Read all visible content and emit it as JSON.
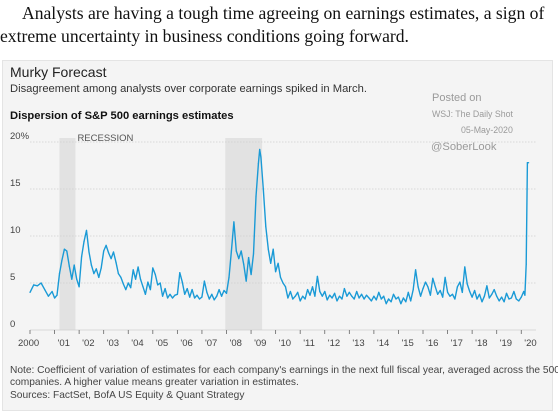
{
  "intro_text": "Analysts are having a tough time agreeing on earnings estimates, a sign of extreme uncertainty in business conditions going forward.",
  "postmark": {
    "line1": "Posted on",
    "line2": "WSJ: The Daily Shot",
    "line3": "05-May-2020",
    "line4": "@SoberLook"
  },
  "note": "Note: Coefficient of variation of estimates for each company's earnings in the next full fiscal year, averaged across the 500 companies. A higher value means greater variation in estimates.",
  "note_line1": "Note: Coefficient of variation of estimates for each company's earnings in the next full fiscal year, averaged across the 500",
  "note_line2": "companies. A higher value means greater variation in estimates.",
  "sources": "Sources: FactSet, BofA US Equity & Quant Strategy",
  "colors": {
    "line": "#1a9ad6",
    "recession": "#e2e2e2",
    "card": "#f4f4f4",
    "grid": "#cfcfcf"
  },
  "chart_data": {
    "type": "line",
    "title": "Murky Forecast",
    "subtitle": "Disagreement among analysts over corporate earnings spiked in March.",
    "panel_title": "Dispersion of S&P 500 earnings estimates",
    "ylim": [
      0,
      20
    ],
    "yticks": [
      0,
      5,
      10,
      15,
      20
    ],
    "ytick_labels": [
      "0",
      "5",
      "10",
      "15",
      "20%"
    ],
    "xlim": [
      2000,
      2020.6
    ],
    "xticks": [
      2000,
      2001,
      2002,
      2003,
      2004,
      2005,
      2006,
      2007,
      2008,
      2009,
      2010,
      2011,
      2012,
      2013,
      2014,
      2015,
      2016,
      2017,
      2018,
      2019,
      2020
    ],
    "xtick_labels": [
      "2000",
      "'01",
      "'02",
      "'03",
      "'04",
      "'05",
      "'06",
      "'07",
      "'08",
      "'09",
      "'10",
      "'11",
      "'12",
      "'13",
      "'14",
      "'15",
      "'16",
      "'17",
      "'18",
      "'19",
      "'20"
    ],
    "grid": true,
    "recessions": [
      {
        "label": "RECESSION",
        "start": 2001.2,
        "end": 2001.85
      },
      {
        "label": "",
        "start": 2007.95,
        "end": 2009.45
      }
    ],
    "series": [
      {
        "values": [
          [
            2000.0,
            4.0
          ],
          [
            2000.15,
            4.8
          ],
          [
            2000.3,
            4.7
          ],
          [
            2000.45,
            5.0
          ],
          [
            2000.6,
            4.3
          ],
          [
            2000.75,
            3.6
          ],
          [
            2000.9,
            4.1
          ],
          [
            2001.0,
            3.4
          ],
          [
            2001.1,
            3.7
          ],
          [
            2001.2,
            6.0
          ],
          [
            2001.3,
            7.4
          ],
          [
            2001.4,
            8.6
          ],
          [
            2001.5,
            8.4
          ],
          [
            2001.6,
            6.8
          ],
          [
            2001.7,
            5.4
          ],
          [
            2001.8,
            6.9
          ],
          [
            2001.9,
            5.4
          ],
          [
            2002.0,
            4.6
          ],
          [
            2002.1,
            7.8
          ],
          [
            2002.2,
            9.4
          ],
          [
            2002.3,
            10.6
          ],
          [
            2002.4,
            8.3
          ],
          [
            2002.5,
            6.9
          ],
          [
            2002.6,
            6.0
          ],
          [
            2002.7,
            6.5
          ],
          [
            2002.8,
            5.6
          ],
          [
            2002.9,
            6.6
          ],
          [
            2003.0,
            8.4
          ],
          [
            2003.1,
            9.0
          ],
          [
            2003.2,
            8.2
          ],
          [
            2003.3,
            7.6
          ],
          [
            2003.4,
            8.3
          ],
          [
            2003.5,
            7.2
          ],
          [
            2003.6,
            6.0
          ],
          [
            2003.7,
            5.6
          ],
          [
            2003.8,
            4.9
          ],
          [
            2003.9,
            4.3
          ],
          [
            2004.0,
            5.0
          ],
          [
            2004.1,
            4.5
          ],
          [
            2004.2,
            6.4
          ],
          [
            2004.3,
            5.4
          ],
          [
            2004.4,
            6.7
          ],
          [
            2004.5,
            5.4
          ],
          [
            2004.6,
            4.6
          ],
          [
            2004.7,
            3.8
          ],
          [
            2004.8,
            5.1
          ],
          [
            2004.9,
            4.3
          ],
          [
            2005.0,
            6.6
          ],
          [
            2005.1,
            5.9
          ],
          [
            2005.2,
            4.8
          ],
          [
            2005.3,
            5.0
          ],
          [
            2005.4,
            3.6
          ],
          [
            2005.5,
            4.4
          ],
          [
            2005.6,
            3.4
          ],
          [
            2005.7,
            3.8
          ],
          [
            2005.8,
            3.4
          ],
          [
            2005.9,
            3.7
          ],
          [
            2006.0,
            3.8
          ],
          [
            2006.1,
            6.1
          ],
          [
            2006.2,
            5.1
          ],
          [
            2006.3,
            3.8
          ],
          [
            2006.4,
            4.4
          ],
          [
            2006.5,
            3.5
          ],
          [
            2006.6,
            4.3
          ],
          [
            2006.7,
            3.4
          ],
          [
            2006.8,
            3.7
          ],
          [
            2006.9,
            3.3
          ],
          [
            2007.0,
            3.5
          ],
          [
            2007.1,
            5.2
          ],
          [
            2007.2,
            4.0
          ],
          [
            2007.3,
            3.3
          ],
          [
            2007.4,
            3.8
          ],
          [
            2007.5,
            3.2
          ],
          [
            2007.6,
            3.6
          ],
          [
            2007.7,
            4.3
          ],
          [
            2007.8,
            3.6
          ],
          [
            2007.9,
            4.2
          ],
          [
            2008.0,
            3.9
          ],
          [
            2008.1,
            5.6
          ],
          [
            2008.2,
            8.4
          ],
          [
            2008.3,
            11.5
          ],
          [
            2008.4,
            8.4
          ],
          [
            2008.5,
            7.6
          ],
          [
            2008.6,
            8.4
          ],
          [
            2008.7,
            7.0
          ],
          [
            2008.8,
            5.2
          ],
          [
            2008.9,
            7.7
          ],
          [
            2009.0,
            5.9
          ],
          [
            2009.1,
            8.1
          ],
          [
            2009.2,
            14.2
          ],
          [
            2009.3,
            17.7
          ],
          [
            2009.35,
            19.2
          ],
          [
            2009.4,
            18.4
          ],
          [
            2009.5,
            15.0
          ],
          [
            2009.6,
            11.0
          ],
          [
            2009.7,
            8.6
          ],
          [
            2009.8,
            7.1
          ],
          [
            2009.9,
            8.6
          ],
          [
            2010.0,
            6.2
          ],
          [
            2010.1,
            7.1
          ],
          [
            2010.2,
            5.6
          ],
          [
            2010.3,
            5.0
          ],
          [
            2010.4,
            4.6
          ],
          [
            2010.5,
            3.4
          ],
          [
            2010.6,
            4.1
          ],
          [
            2010.7,
            3.3
          ],
          [
            2010.8,
            3.6
          ],
          [
            2010.9,
            4.0
          ],
          [
            2011.0,
            3.1
          ],
          [
            2011.1,
            3.6
          ],
          [
            2011.2,
            3.3
          ],
          [
            2011.3,
            4.3
          ],
          [
            2011.4,
            3.7
          ],
          [
            2011.5,
            4.6
          ],
          [
            2011.6,
            3.6
          ],
          [
            2011.7,
            5.7
          ],
          [
            2011.8,
            4.1
          ],
          [
            2011.9,
            3.6
          ],
          [
            2012.0,
            4.1
          ],
          [
            2012.1,
            3.2
          ],
          [
            2012.2,
            3.7
          ],
          [
            2012.3,
            3.4
          ],
          [
            2012.4,
            3.9
          ],
          [
            2012.5,
            3.1
          ],
          [
            2012.6,
            3.6
          ],
          [
            2012.7,
            3.3
          ],
          [
            2012.8,
            4.4
          ],
          [
            2012.9,
            3.6
          ],
          [
            2013.0,
            4.0
          ],
          [
            2013.1,
            3.6
          ],
          [
            2013.2,
            3.3
          ],
          [
            2013.3,
            4.1
          ],
          [
            2013.4,
            3.4
          ],
          [
            2013.5,
            3.8
          ],
          [
            2013.6,
            3.3
          ],
          [
            2013.7,
            3.7
          ],
          [
            2013.8,
            3.4
          ],
          [
            2013.9,
            3.1
          ],
          [
            2014.0,
            3.6
          ],
          [
            2014.1,
            3.2
          ],
          [
            2014.2,
            4.0
          ],
          [
            2014.3,
            3.3
          ],
          [
            2014.4,
            3.6
          ],
          [
            2014.5,
            2.8
          ],
          [
            2014.6,
            3.3
          ],
          [
            2014.7,
            3.0
          ],
          [
            2014.8,
            3.8
          ],
          [
            2014.9,
            3.3
          ],
          [
            2015.0,
            3.5
          ],
          [
            2015.1,
            2.8
          ],
          [
            2015.2,
            3.4
          ],
          [
            2015.3,
            3.0
          ],
          [
            2015.4,
            4.0
          ],
          [
            2015.5,
            3.1
          ],
          [
            2015.6,
            4.3
          ],
          [
            2015.7,
            6.4
          ],
          [
            2015.8,
            4.6
          ],
          [
            2015.9,
            3.6
          ],
          [
            2016.0,
            4.4
          ],
          [
            2016.1,
            5.1
          ],
          [
            2016.2,
            4.6
          ],
          [
            2016.3,
            3.7
          ],
          [
            2016.4,
            5.5
          ],
          [
            2016.5,
            4.6
          ],
          [
            2016.6,
            3.8
          ],
          [
            2016.7,
            4.2
          ],
          [
            2016.8,
            3.5
          ],
          [
            2016.9,
            5.6
          ],
          [
            2017.0,
            4.0
          ],
          [
            2017.1,
            3.6
          ],
          [
            2017.2,
            3.8
          ],
          [
            2017.3,
            3.3
          ],
          [
            2017.4,
            4.6
          ],
          [
            2017.5,
            5.1
          ],
          [
            2017.6,
            4.0
          ],
          [
            2017.7,
            6.7
          ],
          [
            2017.8,
            4.9
          ],
          [
            2017.9,
            4.1
          ],
          [
            2018.0,
            3.5
          ],
          [
            2018.1,
            4.2
          ],
          [
            2018.2,
            3.3
          ],
          [
            2018.3,
            3.8
          ],
          [
            2018.4,
            3.0
          ],
          [
            2018.5,
            3.6
          ],
          [
            2018.6,
            4.7
          ],
          [
            2018.7,
            3.4
          ],
          [
            2018.8,
            3.8
          ],
          [
            2018.9,
            4.3
          ],
          [
            2019.0,
            3.6
          ],
          [
            2019.1,
            3.1
          ],
          [
            2019.2,
            3.5
          ],
          [
            2019.3,
            3.0
          ],
          [
            2019.4,
            3.9
          ],
          [
            2019.5,
            3.3
          ],
          [
            2019.6,
            3.4
          ],
          [
            2019.7,
            4.1
          ],
          [
            2019.8,
            3.3
          ],
          [
            2019.9,
            3.1
          ],
          [
            2020.0,
            3.5
          ],
          [
            2020.1,
            4.1
          ],
          [
            2020.15,
            3.7
          ],
          [
            2020.2,
            7.0
          ],
          [
            2020.25,
            17.8
          ],
          [
            2020.3,
            17.8
          ]
        ]
      }
    ]
  }
}
